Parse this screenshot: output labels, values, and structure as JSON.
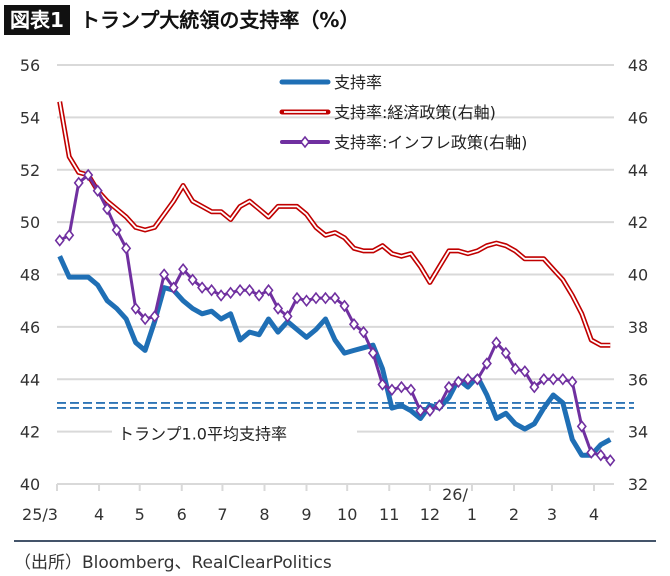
{
  "title": {
    "badge": "図表1",
    "text": "トランプ大統領の支持率（%）"
  },
  "source": "（出所）Bloomberg、RealClearPolitics",
  "chart_data": {
    "type": "line",
    "title": "トランプ大統領の支持率（%）",
    "left_axis": {
      "ylim": [
        40,
        56
      ],
      "ticks": [
        "40",
        "42",
        "44",
        "46",
        "48",
        "50",
        "52",
        "54",
        "56"
      ]
    },
    "right_axis": {
      "ylim": [
        32,
        48
      ],
      "ticks": [
        "32",
        "34",
        "36",
        "38",
        "40",
        "42",
        "44",
        "46",
        "48"
      ]
    },
    "x_ticks": [
      "25/3",
      "4",
      "5",
      "6",
      "7",
      "8",
      "9",
      "10",
      "11",
      "12",
      "1",
      "2",
      "3",
      "4"
    ],
    "x_year_marker": "26/",
    "grid": true,
    "legend_placement": "top-center",
    "x": [
      "2025-03-03",
      "2025-03-10",
      "2025-03-17",
      "2025-03-24",
      "2025-03-31",
      "2025-04-07",
      "2025-04-14",
      "2025-04-21",
      "2025-04-28",
      "2025-05-05",
      "2025-05-12",
      "2025-05-19",
      "2025-05-26",
      "2025-06-02",
      "2025-06-09",
      "2025-06-16",
      "2025-06-23",
      "2025-06-30",
      "2025-07-07",
      "2025-07-14",
      "2025-07-21",
      "2025-07-28",
      "2025-08-04",
      "2025-08-11",
      "2025-08-18",
      "2025-08-25",
      "2025-09-01",
      "2025-09-08",
      "2025-09-15",
      "2025-09-22",
      "2025-09-29",
      "2025-10-06",
      "2025-10-13",
      "2025-10-20",
      "2025-10-27",
      "2025-11-03",
      "2025-11-10",
      "2025-11-17",
      "2025-11-24",
      "2025-12-01",
      "2025-12-08",
      "2025-12-15",
      "2025-12-22",
      "2025-12-29",
      "2026-01-05",
      "2026-01-12",
      "2026-01-19",
      "2026-01-26",
      "2026-02-02",
      "2026-02-09",
      "2026-02-16",
      "2026-02-23",
      "2026-03-02",
      "2026-03-09",
      "2026-03-16",
      "2026-03-23",
      "2026-03-30",
      "2026-04-06",
      "2026-04-13"
    ],
    "series": [
      {
        "name": "支持率",
        "axis": "left",
        "color": "#1f6fb5",
        "values": [
          48.7,
          47.9,
          47.9,
          47.9,
          47.6,
          47.0,
          46.7,
          46.3,
          45.4,
          45.1,
          46.2,
          47.5,
          47.4,
          47.0,
          46.7,
          46.5,
          46.6,
          46.3,
          46.5,
          45.5,
          45.8,
          45.7,
          46.3,
          45.8,
          46.2,
          45.9,
          45.6,
          45.9,
          46.3,
          45.5,
          45.0,
          45.1,
          45.2,
          45.3,
          44.4,
          42.9,
          43.0,
          42.8,
          42.5,
          43.0,
          42.9,
          43.3,
          44.0,
          43.7,
          44.1,
          43.4,
          42.5,
          42.7,
          42.3,
          42.1,
          42.3,
          42.9,
          43.4,
          43.1,
          41.7,
          41.1,
          41.1,
          41.5,
          41.7
        ]
      },
      {
        "name": "支持率:経済政策(右軸)",
        "axis": "right",
        "color": "#c00000",
        "values": [
          46.6,
          44.5,
          43.9,
          43.8,
          43.2,
          42.8,
          42.5,
          42.2,
          41.8,
          41.7,
          41.8,
          42.3,
          42.8,
          43.4,
          42.8,
          42.6,
          42.4,
          42.4,
          42.1,
          42.6,
          42.8,
          42.5,
          42.2,
          42.6,
          42.6,
          42.6,
          42.3,
          41.8,
          41.5,
          41.6,
          41.4,
          41.0,
          40.9,
          40.9,
          41.1,
          40.8,
          40.7,
          40.8,
          40.3,
          39.7,
          40.3,
          40.9,
          40.9,
          40.8,
          40.9,
          41.1,
          41.2,
          41.1,
          40.9,
          40.6,
          40.6,
          40.6,
          40.2,
          39.8,
          39.2,
          38.5,
          37.5,
          37.3,
          37.3
        ]
      },
      {
        "name": "支持率:インフレ政策(右軸)",
        "axis": "right",
        "color": "#7030a0",
        "values": [
          41.3,
          41.5,
          43.5,
          43.8,
          43.2,
          42.5,
          41.7,
          41.0,
          38.7,
          38.3,
          38.4,
          40.0,
          39.5,
          40.2,
          39.8,
          39.5,
          39.4,
          39.2,
          39.3,
          39.4,
          39.4,
          39.2,
          39.4,
          38.7,
          38.4,
          39.1,
          39.0,
          39.1,
          39.1,
          39.1,
          38.8,
          38.1,
          37.8,
          37.0,
          35.8,
          35.6,
          35.7,
          35.6,
          34.8,
          34.8,
          35.0,
          35.7,
          35.9,
          36.0,
          36.0,
          36.6,
          37.4,
          37.0,
          36.4,
          36.3,
          35.7,
          36.0,
          36.0,
          36.0,
          35.9,
          34.2,
          33.2,
          33.1,
          32.9
        ]
      }
    ],
    "reference_line": {
      "label": "トランプ1.0平均支持率",
      "value": 43,
      "axis": "left",
      "color": "#2e75b6"
    }
  }
}
